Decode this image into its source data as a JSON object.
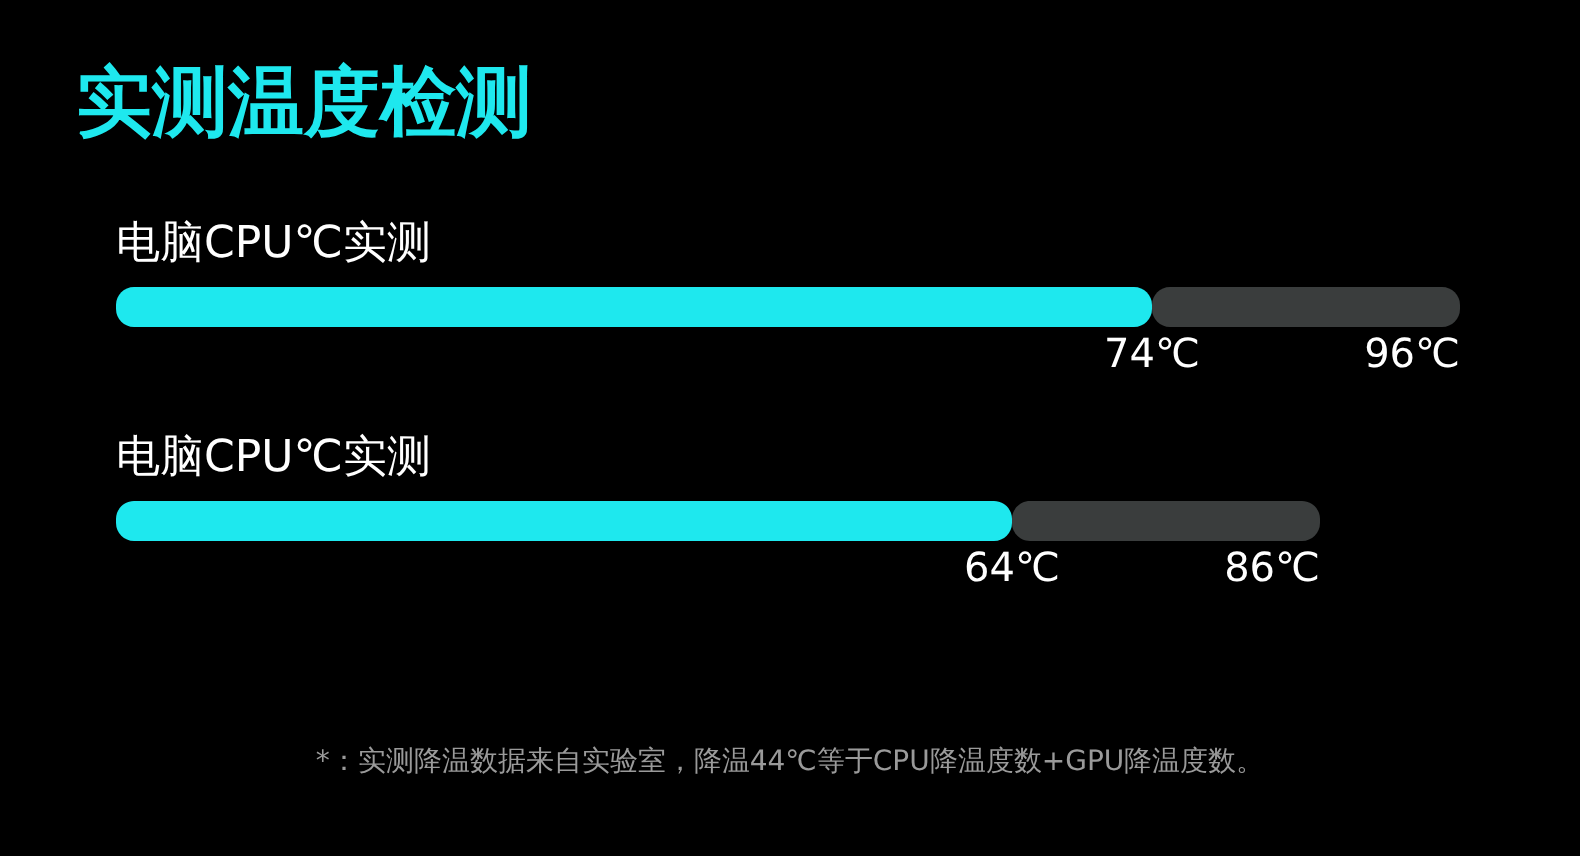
{
  "chart_data": {
    "type": "bar",
    "orientation": "horizontal",
    "stacked": true,
    "title": "实测温度检测",
    "categories": [
      "电脑CPU℃实测",
      "电脑CPU℃实测"
    ],
    "series": [
      {
        "color": "#1ee8ee",
        "values": [
          74,
          64
        ],
        "value_labels": [
          "74℃",
          "64℃"
        ]
      },
      {
        "color": "#3a3d3d",
        "values": [
          22,
          22
        ]
      }
    ],
    "totals": [
      "96℃",
      "86℃"
    ],
    "tick_labels": false,
    "annotations": [
      "*：实测降温数据来自实验室，降温44℃等于CPU降温度数+GPU降温度数。"
    ]
  }
}
